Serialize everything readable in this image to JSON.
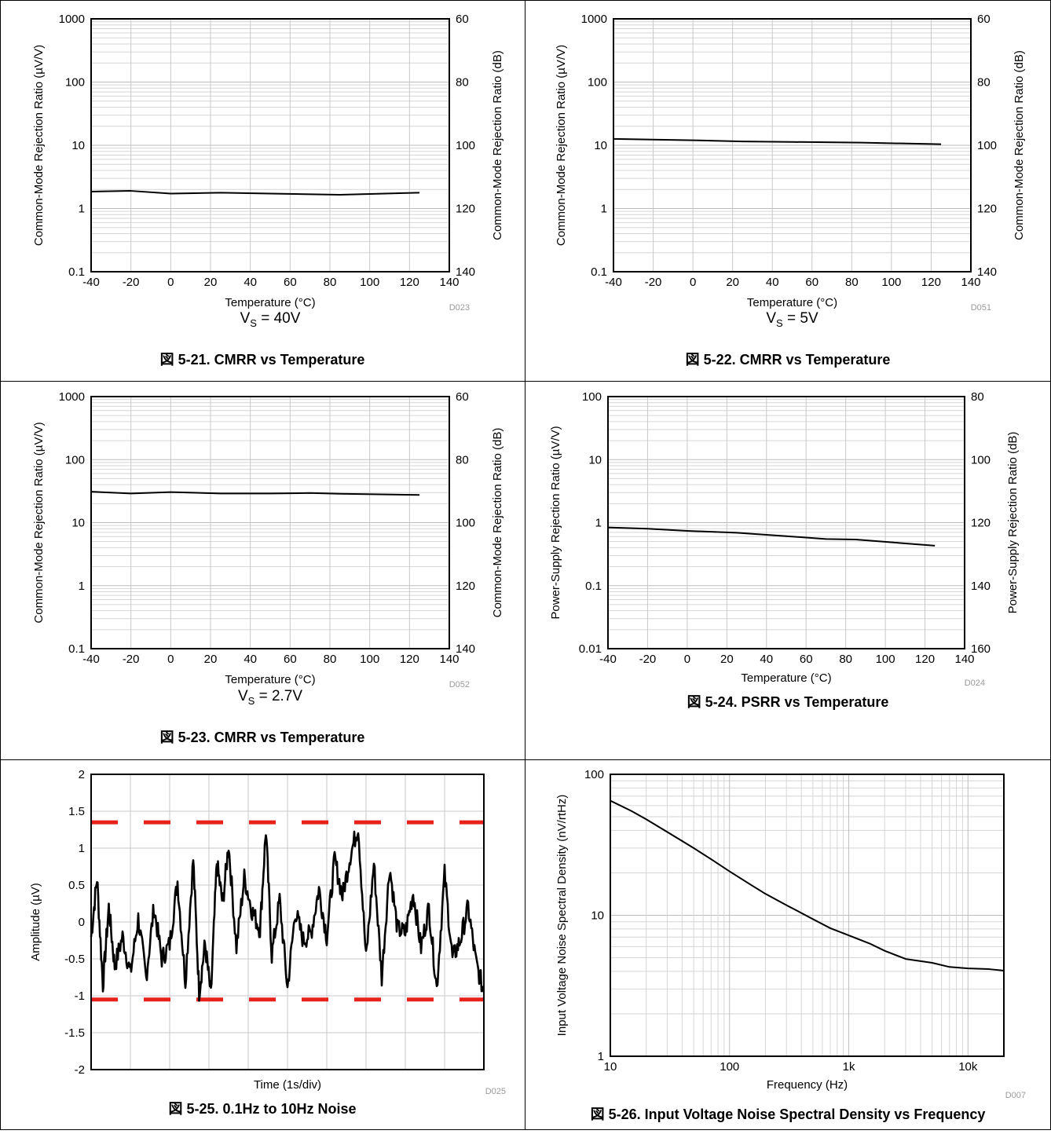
{
  "chart_data": [
    {
      "type": "line",
      "id": "fig-5-21",
      "caption": "図 5-21. CMRR vs Temperature",
      "subtitle_main": "V",
      "subtitle_sub": "S",
      "subtitle_rest": " = 40V",
      "xlabel": "Temperature (°C)",
      "ylabel": "Common-Mode Rejection Ratio (µV/V)",
      "y2label": "Common-Mode Rejection Ratio (dB)",
      "code": "D023",
      "xlim": [
        -40,
        140
      ],
      "ylim": [
        0.1,
        1000
      ],
      "yscale": "log",
      "xticks": [
        "-40",
        "-20",
        "0",
        "20",
        "40",
        "60",
        "80",
        "100",
        "120",
        "140"
      ],
      "yticks": [
        "0.1",
        "1",
        "10",
        "100",
        "1000"
      ],
      "y2ticks": [
        "140",
        "120",
        "100",
        "80",
        "60"
      ],
      "grid": true,
      "series": [
        {
          "x": [
            -40,
            -20,
            0,
            25,
            50,
            85,
            125
          ],
          "y": [
            1.85,
            1.9,
            1.72,
            1.78,
            1.72,
            1.65,
            1.78
          ]
        }
      ]
    },
    {
      "type": "line",
      "id": "fig-5-22",
      "caption": "図 5-22. CMRR vs Temperature",
      "subtitle_main": "V",
      "subtitle_sub": "S",
      "subtitle_rest": " = 5V",
      "xlabel": "Temperature (°C)",
      "ylabel": "Common-Mode Rejection Ratio (µV/V)",
      "y2label": "Common-Mode Rejection Ratio (dB)",
      "code": "D051",
      "xlim": [
        -40,
        140
      ],
      "ylim": [
        0.1,
        1000
      ],
      "yscale": "log",
      "xticks": [
        "-40",
        "-20",
        "0",
        "20",
        "40",
        "60",
        "80",
        "100",
        "120",
        "140"
      ],
      "yticks": [
        "0.1",
        "1",
        "10",
        "100",
        "1000"
      ],
      "y2ticks": [
        "140",
        "120",
        "100",
        "80",
        "60"
      ],
      "grid": true,
      "series": [
        {
          "x": [
            -40,
            -20,
            0,
            25,
            50,
            85,
            125
          ],
          "y": [
            12.6,
            12.3,
            12.0,
            11.5,
            11.3,
            11.0,
            10.4
          ]
        }
      ]
    },
    {
      "type": "line",
      "id": "fig-5-23",
      "caption": "図 5-23. CMRR vs Temperature",
      "subtitle_main": "V",
      "subtitle_sub": "S",
      "subtitle_rest": " = 2.7V",
      "xlabel": "Temperature (°C)",
      "ylabel": "Common-Mode Rejection Ratio (µV/V)",
      "y2label": "Common-Mode Rejection Ratio (dB)",
      "code": "D052",
      "xlim": [
        -40,
        140
      ],
      "ylim": [
        0.1,
        1000
      ],
      "yscale": "log",
      "xticks": [
        "-40",
        "-20",
        "0",
        "20",
        "40",
        "60",
        "80",
        "100",
        "120",
        "140"
      ],
      "yticks": [
        "0.1",
        "1",
        "10",
        "100",
        "1000"
      ],
      "y2ticks": [
        "140",
        "120",
        "100",
        "80",
        "60"
      ],
      "grid": true,
      "series": [
        {
          "x": [
            -40,
            -20,
            0,
            25,
            50,
            70,
            85,
            125
          ],
          "y": [
            31,
            29,
            30.5,
            29,
            29,
            29.5,
            28.7,
            27.5
          ]
        }
      ]
    },
    {
      "type": "line",
      "id": "fig-5-24",
      "caption": "図 5-24. PSRR vs Temperature",
      "xlabel": "Temperature (°C)",
      "ylabel": "Power-Supply Rejection Ratio (µV/V)",
      "y2label": "Power-Supply Rejection Ratio (dB)",
      "code": "D024",
      "xlim": [
        -40,
        140
      ],
      "ylim": [
        0.01,
        100
      ],
      "yscale": "log",
      "xticks": [
        "-40",
        "-20",
        "0",
        "20",
        "40",
        "60",
        "80",
        "100",
        "120",
        "140"
      ],
      "yticks": [
        "0.01",
        "0.1",
        "1",
        "10",
        "100"
      ],
      "y2ticks": [
        "160",
        "140",
        "120",
        "100",
        "80"
      ],
      "grid": true,
      "series": [
        {
          "x": [
            -40,
            -20,
            0,
            25,
            50,
            70,
            85,
            125
          ],
          "y": [
            0.84,
            0.8,
            0.74,
            0.69,
            0.61,
            0.55,
            0.54,
            0.43
          ]
        }
      ]
    },
    {
      "type": "line",
      "id": "fig-5-25",
      "caption": "図 5-25. 0.1Hz to 10Hz Noise",
      "xlabel": "Time (1s/div)",
      "ylabel": "Amplitude (µV)",
      "code": "D025",
      "xlim": [
        0,
        10
      ],
      "ylim": [
        -2,
        2
      ],
      "yscale": "linear",
      "xticks": [],
      "yticks": [
        "-2",
        "-1.5",
        "-1",
        "-0.5",
        "0",
        "0.5",
        "1",
        "1.5",
        "2"
      ],
      "grid": true,
      "ref_lines": [
        1.35,
        -1.05
      ],
      "ref_color": "#e8221a",
      "series": [
        {
          "x": [
            0,
            0.15,
            0.3,
            0.45,
            0.6,
            0.8,
            1.0,
            1.2,
            1.4,
            1.6,
            1.8,
            2.0,
            2.2,
            2.4,
            2.6,
            2.75,
            2.9,
            3.05,
            3.2,
            3.35,
            3.5,
            3.7,
            3.9,
            4.1,
            4.3,
            4.45,
            4.6,
            4.8,
            5.0,
            5.2,
            5.4,
            5.6,
            5.8,
            6.0,
            6.2,
            6.4,
            6.6,
            6.8,
            7.0,
            7.2,
            7.4,
            7.6,
            7.8,
            8.0,
            8.2,
            8.4,
            8.6,
            8.8,
            9.0,
            9.2,
            9.4,
            9.6,
            9.8,
            10.0
          ],
          "y": [
            -0.2,
            0.6,
            -0.85,
            0.2,
            -0.6,
            -0.2,
            -0.7,
            0.05,
            -0.75,
            0.2,
            -0.5,
            -0.3,
            0.55,
            -0.8,
            0.85,
            -0.95,
            -0.3,
            -1.0,
            0.8,
            0.25,
            1.05,
            -0.35,
            0.6,
            0.15,
            -0.1,
            1.25,
            -0.45,
            0.3,
            -0.9,
            0.15,
            -0.25,
            -0.15,
            0.45,
            -0.2,
            0.85,
            0.35,
            0.9,
            1.3,
            -0.5,
            0.8,
            -0.75,
            0.75,
            -0.1,
            -0.15,
            0.4,
            -0.35,
            0.2,
            -0.9,
            0.65,
            -0.5,
            -0.25,
            0.2,
            -0.55,
            -0.95
          ]
        }
      ]
    },
    {
      "type": "line",
      "id": "fig-5-26",
      "caption": "図 5-26. Input Voltage Noise Spectral Density vs Frequency",
      "xlabel": "Frequency (Hz)",
      "ylabel": "Input Voltage Noise Spectral Density (nV/rtHz)",
      "code": "D007",
      "xlim": [
        10,
        20000
      ],
      "ylim": [
        1,
        100
      ],
      "xscale": "log",
      "yscale": "log",
      "xticks": [
        "10",
        "100",
        "1k",
        "10k"
      ],
      "yticks": [
        "1",
        "10",
        "100"
      ],
      "grid": true,
      "series": [
        {
          "x": [
            10,
            15,
            20,
            30,
            50,
            70,
            100,
            150,
            200,
            300,
            500,
            700,
            1000,
            1500,
            2000,
            3000,
            5000,
            7000,
            10000,
            15000,
            20000
          ],
          "y": [
            65,
            55,
            48,
            39,
            30,
            25,
            20.5,
            16.5,
            14.2,
            11.8,
            9.4,
            8.1,
            7.2,
            6.3,
            5.6,
            4.9,
            4.6,
            4.3,
            4.2,
            4.15,
            4.05
          ]
        }
      ]
    }
  ]
}
